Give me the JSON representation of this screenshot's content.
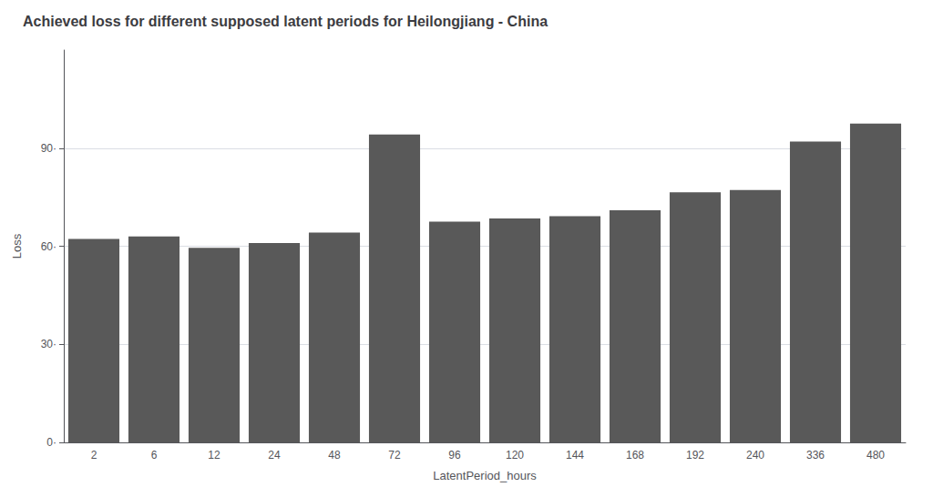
{
  "chart_data": {
    "type": "bar",
    "title": "Achieved loss for different supposed latent periods for Heilongjiang - China",
    "xlabel": "LatentPeriod_hours",
    "ylabel": "Loss",
    "categories": [
      "2",
      "6",
      "12",
      "24",
      "48",
      "72",
      "96",
      "120",
      "144",
      "168",
      "192",
      "240",
      "336",
      "480"
    ],
    "values": [
      62.2,
      63.0,
      59.5,
      61.0,
      64.2,
      94.2,
      67.5,
      68.5,
      69.2,
      71.0,
      76.5,
      77.2,
      92.0,
      97.5
    ],
    "color": "#595959",
    "ylim": [
      0,
      120
    ],
    "yticks": [
      {
        "value": 0,
        "label": "0·"
      },
      {
        "value": 30,
        "label": "30·"
      },
      {
        "value": 60,
        "label": "60·"
      },
      {
        "value": 90,
        "label": "90·"
      }
    ],
    "grid": true
  }
}
